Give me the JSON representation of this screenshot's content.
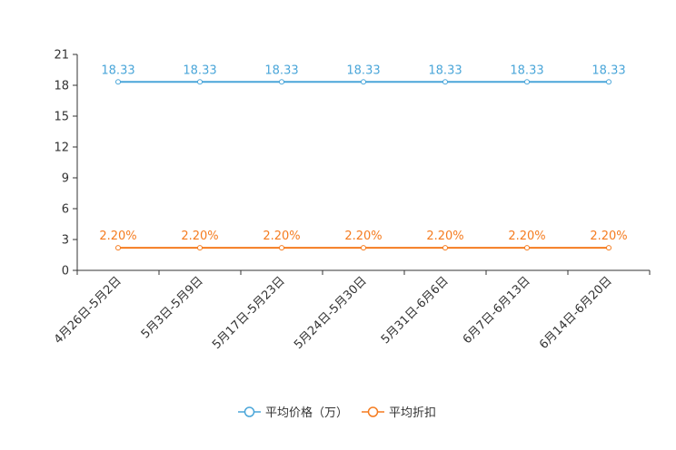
{
  "chart_data": {
    "type": "line",
    "categories": [
      "4月26日-5月2日",
      "5月3日-5月9日",
      "5月17日-5月23日",
      "5月24日-5月30日",
      "5月31日-6月6日",
      "6月7日-6月13日",
      "6月14日-6月20日"
    ],
    "yticks": [
      0,
      3,
      6,
      9,
      12,
      15,
      18,
      21
    ],
    "ylim": [
      0,
      21
    ],
    "series": [
      {
        "name": "平均价格（万）",
        "color": "#4aa6d9",
        "values": [
          18.33,
          18.33,
          18.33,
          18.33,
          18.33,
          18.33,
          18.33
        ],
        "labels": [
          "18.33",
          "18.33",
          "18.33",
          "18.33",
          "18.33",
          "18.33",
          "18.33"
        ]
      },
      {
        "name": "平均折扣",
        "color": "#f57c20",
        "values": [
          2.2,
          2.2,
          2.2,
          2.2,
          2.2,
          2.2,
          2.2
        ],
        "labels": [
          "2.20%",
          "2.20%",
          "2.20%",
          "2.20%",
          "2.20%",
          "2.20%",
          "2.20%"
        ]
      }
    ],
    "legend_position": "bottom-center"
  }
}
